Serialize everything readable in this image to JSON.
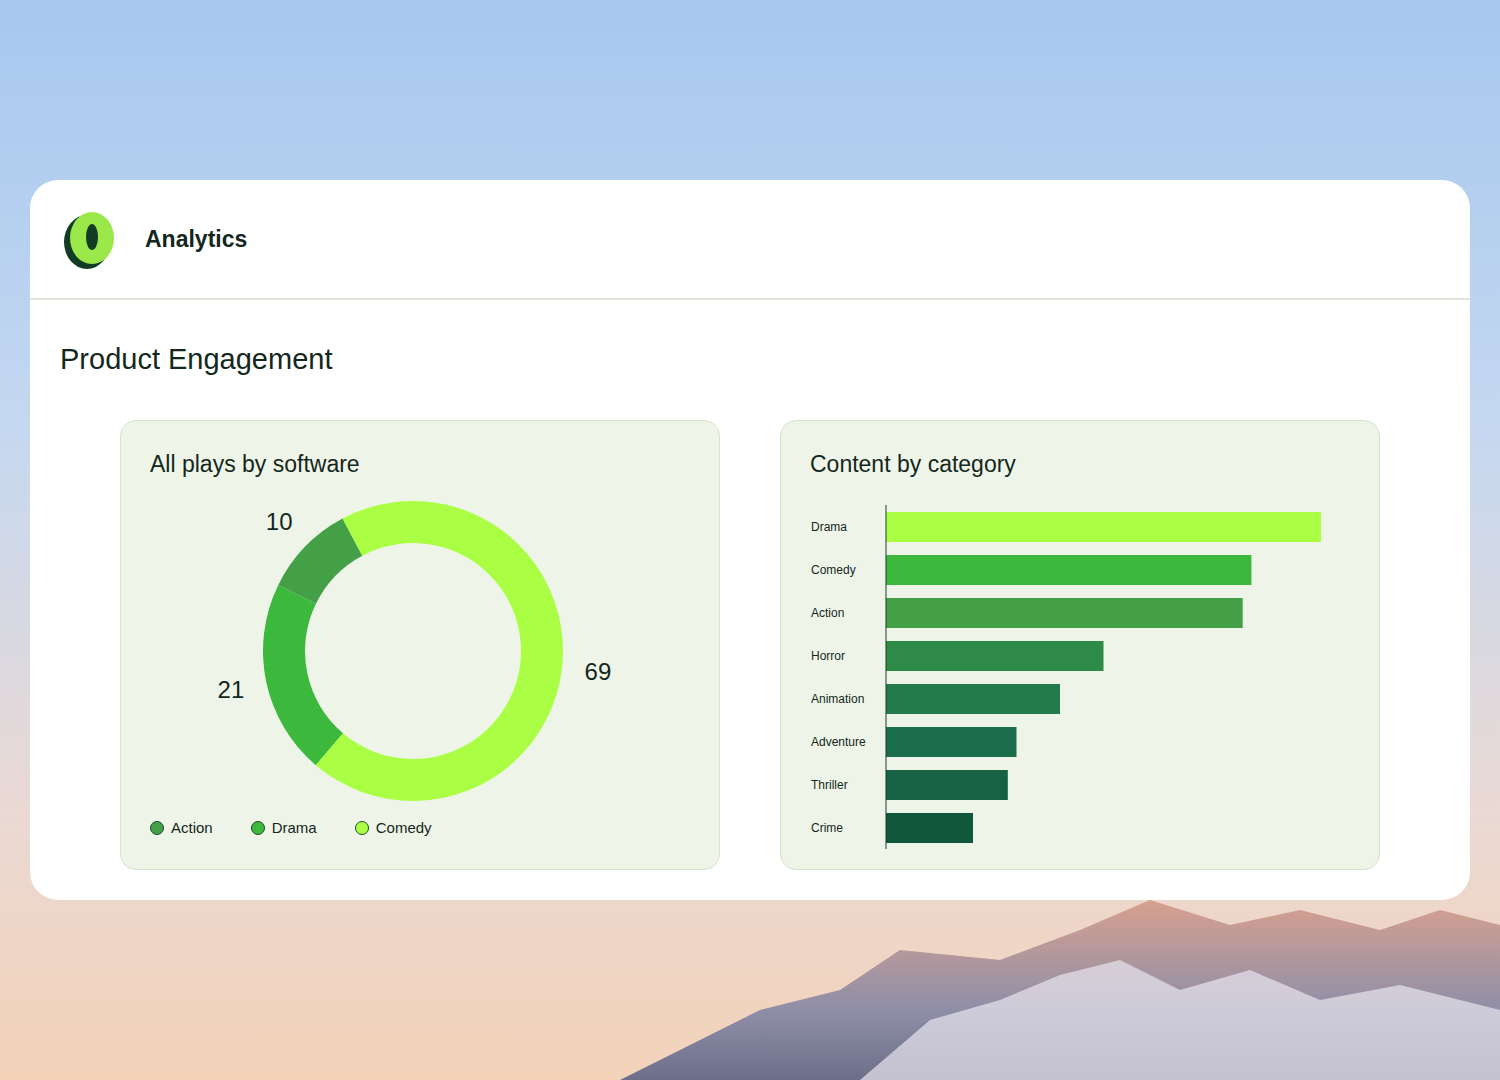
{
  "header": {
    "title": "Analytics"
  },
  "section": {
    "title": "Product Engagement"
  },
  "chart_data": [
    {
      "type": "donut",
      "title": "All plays by software",
      "categories": [
        "Action",
        "Drama",
        "Comedy"
      ],
      "values": [
        10,
        21,
        69
      ],
      "colors": [
        "#43a047",
        "#3cb83c",
        "#aaff44"
      ],
      "data_labels": true,
      "legend": "bottom-left"
    },
    {
      "type": "bar",
      "orientation": "horizontal",
      "title": "Content by category",
      "categories": [
        "Drama",
        "Comedy",
        "Action",
        "Horror",
        "Animation",
        "Adventure",
        "Thriller",
        "Crime"
      ],
      "values": [
        100,
        84,
        82,
        50,
        40,
        30,
        28,
        20
      ],
      "colors": [
        "#aaff44",
        "#3cb83c",
        "#43a047",
        "#2e8b47",
        "#237a4a",
        "#1a6e4c",
        "#176244",
        "#11573b"
      ],
      "xlim": [
        0,
        100
      ],
      "tick_labels": "y"
    }
  ]
}
